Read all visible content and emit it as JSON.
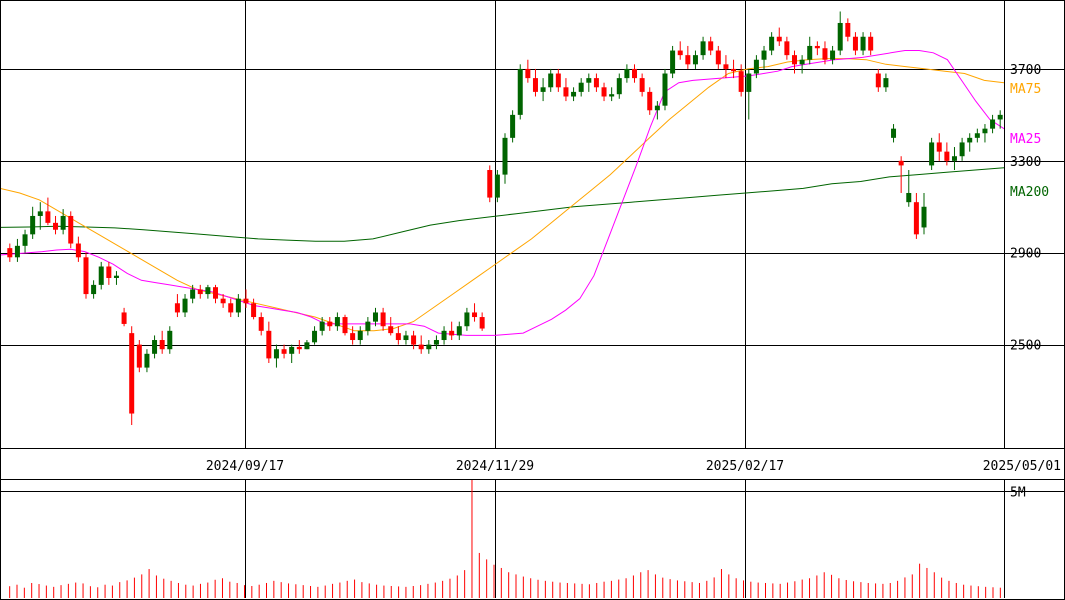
{
  "chart_data": {
    "type": "candlestick",
    "price_axis": {
      "ticks": [
        2500,
        2900,
        3300,
        3700
      ],
      "range": [
        2050,
        4000
      ]
    },
    "date_axis": {
      "ticks": [
        "2024/09/17",
        "2024/11/29",
        "2025/02/17",
        "2025/05/01"
      ]
    },
    "volume_axis": {
      "tick_label": "5M",
      "tick_value": 5000000,
      "max": 5500000
    },
    "legend": [
      {
        "label": "MA75",
        "color": "#ffa500"
      },
      {
        "label": "MA25",
        "color": "#ff00ff"
      },
      {
        "label": "MA200",
        "color": "#006400"
      }
    ],
    "colors": {
      "up": "#006400",
      "down": "#ff0000",
      "grid": "#000000"
    },
    "candles": [
      [
        2920,
        2940,
        2860,
        2880
      ],
      [
        2880,
        2960,
        2860,
        2930
      ],
      [
        2930,
        3000,
        2900,
        2980
      ],
      [
        2980,
        3100,
        2960,
        3060
      ],
      [
        3060,
        3120,
        3000,
        3080
      ],
      [
        3080,
        3140,
        3020,
        3030
      ],
      [
        3030,
        3060,
        2980,
        3000
      ],
      [
        3000,
        3090,
        2980,
        3060
      ],
      [
        3060,
        3080,
        2920,
        2940
      ],
      [
        2940,
        2970,
        2860,
        2880
      ],
      [
        2880,
        2900,
        2700,
        2720
      ],
      [
        2720,
        2780,
        2700,
        2760
      ],
      [
        2760,
        2860,
        2740,
        2840
      ],
      [
        2840,
        2860,
        2760,
        2790
      ],
      [
        2790,
        2820,
        2760,
        2800
      ],
      [
        2640,
        2660,
        2580,
        2590
      ],
      [
        2550,
        2580,
        2150,
        2200
      ],
      [
        2500,
        2520,
        2380,
        2400
      ],
      [
        2400,
        2480,
        2380,
        2460
      ],
      [
        2460,
        2540,
        2440,
        2520
      ],
      [
        2520,
        2560,
        2460,
        2480
      ],
      [
        2480,
        2580,
        2460,
        2560
      ],
      [
        2680,
        2720,
        2620,
        2640
      ],
      [
        2640,
        2720,
        2620,
        2700
      ],
      [
        2700,
        2760,
        2680,
        2740
      ],
      [
        2740,
        2760,
        2700,
        2720
      ],
      [
        2720,
        2760,
        2700,
        2750
      ],
      [
        2750,
        2760,
        2680,
        2700
      ],
      [
        2700,
        2720,
        2660,
        2680
      ],
      [
        2680,
        2700,
        2620,
        2640
      ],
      [
        2640,
        2720,
        2620,
        2700
      ],
      [
        2700,
        2740,
        2660,
        2680
      ],
      [
        2680,
        2700,
        2610,
        2620
      ],
      [
        2620,
        2640,
        2540,
        2560
      ],
      [
        2560,
        2600,
        2420,
        2440
      ],
      [
        2440,
        2500,
        2400,
        2480
      ],
      [
        2480,
        2500,
        2440,
        2460
      ],
      [
        2460,
        2500,
        2420,
        2490
      ],
      [
        2490,
        2520,
        2460,
        2480
      ],
      [
        2480,
        2520,
        2480,
        2510
      ],
      [
        2510,
        2580,
        2500,
        2560
      ],
      [
        2560,
        2620,
        2540,
        2600
      ],
      [
        2600,
        2620,
        2560,
        2580
      ],
      [
        2580,
        2640,
        2560,
        2620
      ],
      [
        2620,
        2630,
        2540,
        2550
      ],
      [
        2550,
        2580,
        2500,
        2520
      ],
      [
        2520,
        2580,
        2500,
        2560
      ],
      [
        2560,
        2620,
        2540,
        2600
      ],
      [
        2600,
        2660,
        2580,
        2640
      ],
      [
        2640,
        2660,
        2560,
        2580
      ],
      [
        2580,
        2620,
        2540,
        2550
      ],
      [
        2550,
        2580,
        2500,
        2520
      ],
      [
        2520,
        2560,
        2500,
        2540
      ],
      [
        2540,
        2560,
        2480,
        2500
      ],
      [
        2500,
        2540,
        2460,
        2480
      ],
      [
        2480,
        2520,
        2460,
        2500
      ],
      [
        2500,
        2540,
        2480,
        2520
      ],
      [
        2520,
        2580,
        2500,
        2560
      ],
      [
        2560,
        2600,
        2520,
        2540
      ],
      [
        2540,
        2600,
        2520,
        2580
      ],
      [
        2580,
        2660,
        2560,
        2640
      ],
      [
        2640,
        2680,
        2600,
        2620
      ],
      [
        2620,
        2640,
        2560,
        2570
      ],
      [
        3260,
        3280,
        3120,
        3140
      ],
      [
        3140,
        3260,
        3120,
        3240
      ],
      [
        3240,
        3420,
        3200,
        3400
      ],
      [
        3400,
        3520,
        3380,
        3500
      ],
      [
        3500,
        3720,
        3480,
        3700
      ],
      [
        3700,
        3740,
        3640,
        3660
      ],
      [
        3660,
        3700,
        3580,
        3600
      ],
      [
        3600,
        3660,
        3560,
        3620
      ],
      [
        3620,
        3700,
        3600,
        3680
      ],
      [
        3680,
        3700,
        3600,
        3620
      ],
      [
        3620,
        3660,
        3560,
        3580
      ],
      [
        3580,
        3620,
        3560,
        3600
      ],
      [
        3600,
        3660,
        3580,
        3640
      ],
      [
        3640,
        3680,
        3600,
        3660
      ],
      [
        3660,
        3680,
        3600,
        3620
      ],
      [
        3620,
        3640,
        3560,
        3580
      ],
      [
        3580,
        3620,
        3560,
        3590
      ],
      [
        3590,
        3680,
        3570,
        3660
      ],
      [
        3660,
        3720,
        3640,
        3700
      ],
      [
        3700,
        3720,
        3640,
        3660
      ],
      [
        3660,
        3680,
        3580,
        3600
      ],
      [
        3600,
        3620,
        3500,
        3520
      ],
      [
        3520,
        3560,
        3480,
        3540
      ],
      [
        3540,
        3700,
        3520,
        3680
      ],
      [
        3680,
        3800,
        3660,
        3780
      ],
      [
        3780,
        3820,
        3740,
        3760
      ],
      [
        3760,
        3800,
        3700,
        3720
      ],
      [
        3720,
        3780,
        3700,
        3760
      ],
      [
        3760,
        3840,
        3740,
        3820
      ],
      [
        3820,
        3840,
        3760,
        3780
      ],
      [
        3780,
        3800,
        3700,
        3720
      ],
      [
        3720,
        3760,
        3660,
        3700
      ],
      [
        3700,
        3740,
        3660,
        3690
      ],
      [
        3690,
        3720,
        3580,
        3600
      ],
      [
        3600,
        3700,
        3480,
        3680
      ],
      [
        3680,
        3760,
        3660,
        3740
      ],
      [
        3740,
        3800,
        3700,
        3780
      ],
      [
        3780,
        3860,
        3760,
        3840
      ],
      [
        3840,
        3880,
        3800,
        3820
      ],
      [
        3820,
        3840,
        3740,
        3760
      ],
      [
        3760,
        3780,
        3680,
        3720
      ],
      [
        3720,
        3760,
        3680,
        3740
      ],
      [
        3740,
        3840,
        3720,
        3800
      ],
      [
        3800,
        3820,
        3760,
        3790
      ],
      [
        3790,
        3820,
        3720,
        3740
      ],
      [
        3740,
        3800,
        3720,
        3780
      ],
      [
        3780,
        3950,
        3760,
        3900
      ],
      [
        3900,
        3920,
        3820,
        3840
      ],
      [
        3840,
        3860,
        3760,
        3780
      ],
      [
        3780,
        3860,
        3760,
        3840
      ],
      [
        3840,
        3860,
        3760,
        3780
      ],
      [
        3680,
        3700,
        3600,
        3620
      ],
      [
        3620,
        3680,
        3600,
        3660
      ],
      [
        3400,
        3460,
        3380,
        3440
      ],
      [
        3300,
        3320,
        3160,
        3280
      ],
      [
        3120,
        3260,
        3100,
        3160
      ],
      [
        3120,
        3160,
        2960,
        2980
      ],
      [
        3010,
        3160,
        2980,
        3100
      ],
      [
        3280,
        3400,
        3260,
        3380
      ],
      [
        3380,
        3420,
        3300,
        3340
      ],
      [
        3340,
        3380,
        3280,
        3300
      ],
      [
        3300,
        3360,
        3260,
        3320
      ],
      [
        3320,
        3400,
        3300,
        3380
      ],
      [
        3380,
        3420,
        3340,
        3400
      ],
      [
        3400,
        3440,
        3380,
        3420
      ],
      [
        3420,
        3460,
        3380,
        3440
      ],
      [
        3440,
        3500,
        3420,
        3480
      ],
      [
        3480,
        3520,
        3440,
        3500
      ]
    ],
    "ma25": [
      2890,
      2895,
      2900,
      2905,
      2912,
      2915,
      2905,
      2880,
      2850,
      2810,
      2780,
      2770,
      2760,
      2750,
      2740,
      2730,
      2710,
      2690,
      2670,
      2660,
      2650,
      2640,
      2620,
      2590,
      2590,
      2590,
      2590,
      2590,
      2590,
      2590,
      2580,
      2550,
      2545,
      2540,
      2540,
      2540,
      2545,
      2550,
      2580,
      2610,
      2650,
      2700,
      2800,
      2960,
      3120,
      3280,
      3450,
      3600,
      3640,
      3650,
      3655,
      3660,
      3665,
      3670,
      3680,
      3690,
      3710,
      3720,
      3730,
      3740,
      3745,
      3750,
      3760,
      3770,
      3780,
      3780,
      3770,
      3740,
      3650,
      3560,
      3480,
      3440
    ],
    "ma75": [
      3180,
      3160,
      3130,
      3080,
      3030,
      2980,
      2930,
      2880,
      2830,
      2780,
      2740,
      2720,
      2700,
      2680,
      2660,
      2640,
      2620,
      2590,
      2560,
      2560,
      2570,
      2600,
      2660,
      2720,
      2780,
      2840,
      2900,
      2960,
      3030,
      3100,
      3170,
      3240,
      3320,
      3400,
      3480,
      3550,
      3620,
      3680,
      3700,
      3710,
      3730,
      3740,
      3745,
      3745,
      3740,
      3720,
      3710,
      3700,
      3690,
      3680,
      3650,
      3640
    ],
    "ma200": [
      3010,
      3012,
      3015,
      3012,
      3008,
      3000,
      2990,
      2980,
      2970,
      2960,
      2955,
      2950,
      2950,
      2960,
      2990,
      3020,
      3040,
      3055,
      3070,
      3085,
      3100,
      3110,
      3120,
      3130,
      3140,
      3150,
      3160,
      3170,
      3180,
      3200,
      3210,
      3230,
      3240,
      3250,
      3260,
      3270
    ],
    "volume": [
      0.55,
      0.62,
      0.48,
      0.7,
      0.65,
      0.58,
      0.52,
      0.6,
      0.66,
      0.72,
      0.68,
      0.55,
      0.5,
      0.62,
      0.58,
      0.74,
      0.82,
      0.95,
      1.1,
      1.35,
      1.05,
      0.9,
      0.8,
      0.7,
      0.62,
      0.58,
      0.66,
      0.72,
      0.85,
      0.92,
      0.76,
      0.7,
      0.6,
      0.56,
      0.62,
      0.7,
      0.8,
      0.74,
      0.68,
      0.64,
      0.6,
      0.56,
      0.52,
      0.58,
      0.66,
      0.72,
      0.8,
      0.86,
      0.74,
      0.68,
      0.62,
      0.58,
      0.56,
      0.54,
      0.52,
      0.56,
      0.6,
      0.66,
      0.72,
      0.8,
      0.9,
      1.05,
      1.3,
      5.5,
      2.1,
      1.8,
      1.55,
      1.4,
      1.2,
      1.1,
      1.0,
      0.92,
      0.85,
      0.8,
      0.76,
      0.72,
      0.7,
      0.68,
      0.66,
      0.64,
      0.7,
      0.76,
      0.8,
      0.86,
      0.92,
      1.05,
      1.2,
      1.3,
      1.1,
      0.95,
      0.88,
      0.82,
      0.78,
      0.74,
      0.7,
      0.8,
      0.96,
      1.35,
      1.1,
      0.92,
      0.82,
      0.76,
      0.72,
      0.7,
      0.68,
      0.66,
      0.72,
      0.78,
      0.86,
      0.92,
      1.05,
      1.2,
      1.08,
      0.92,
      0.84,
      0.78,
      0.74,
      0.7,
      0.68,
      0.66,
      0.7,
      0.8,
      0.96,
      1.1,
      1.6,
      1.4,
      1.2,
      0.95,
      0.8,
      0.7,
      0.62,
      0.58,
      0.55,
      0.52,
      0.5,
      0.48
    ]
  }
}
